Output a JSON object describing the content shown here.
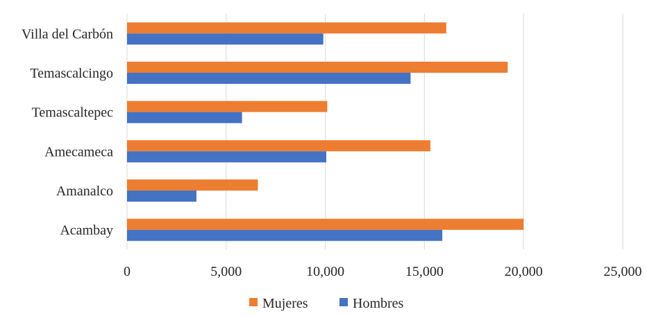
{
  "chart_data": {
    "type": "bar",
    "orientation": "horizontal",
    "categories": [
      "Acambay",
      "Amanalco",
      "Amecameca",
      "Temascaltepec",
      "Temascalcingo",
      "Villa del Carbón"
    ],
    "series": [
      {
        "name": "Mujeres",
        "color": "#ed7d31",
        "values": [
          20000,
          6600,
          15300,
          10100,
          19200,
          16100
        ]
      },
      {
        "name": "Hombres",
        "color": "#4472c4",
        "values": [
          15900,
          3500,
          10050,
          5800,
          14300,
          9900
        ]
      }
    ],
    "xlim": [
      0,
      25000
    ],
    "xticks": [
      0,
      5000,
      10000,
      15000,
      20000,
      25000
    ],
    "xtick_labels": [
      "0",
      "5,000",
      "10,000",
      "15,000",
      "20,000",
      "25,000"
    ],
    "grid": "vertical",
    "legend": {
      "position": "bottom",
      "entries": [
        "Mujeres",
        "Hombres"
      ]
    }
  }
}
